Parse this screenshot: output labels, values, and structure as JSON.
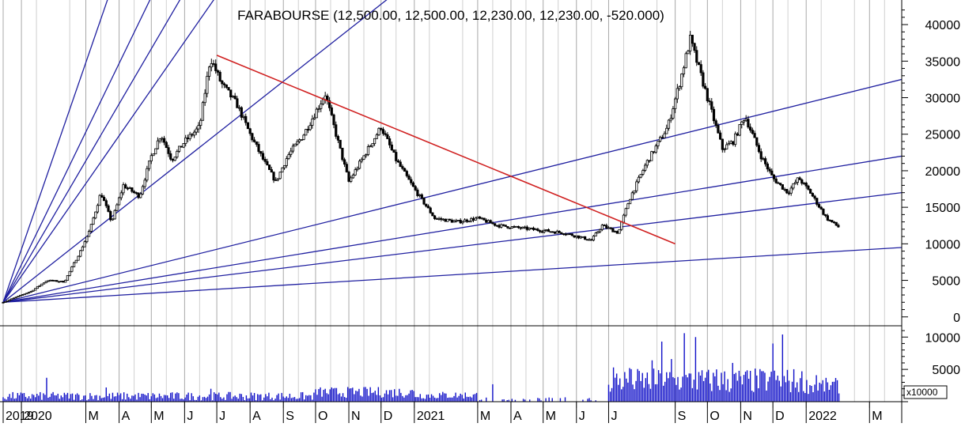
{
  "chart_data": {
    "type": "candlestick",
    "title": "FARABOURSE (12,500.00, 12,500.00, 12,230.00, 12,230.00, -520.000)",
    "price_axis": {
      "ylim": [
        -1000,
        42500
      ],
      "ticks": [
        0,
        5000,
        10000,
        15000,
        20000,
        25000,
        30000,
        35000,
        40000
      ]
    },
    "volume_axis": {
      "ylim": [
        0,
        11500
      ],
      "ticks": [
        5000,
        10000
      ],
      "unit_label": "x10000"
    },
    "x_labels": [
      {
        "label": "2019",
        "date": "2019-12-15"
      },
      {
        "label": "2020",
        "date": "2020-01-01"
      },
      {
        "label": "M",
        "date": "2020-03-01"
      },
      {
        "label": "A",
        "date": "2020-04-01"
      },
      {
        "label": "M",
        "date": "2020-05-01"
      },
      {
        "label": "J",
        "date": "2020-06-01"
      },
      {
        "label": "J",
        "date": "2020-07-01"
      },
      {
        "label": "A",
        "date": "2020-08-01"
      },
      {
        "label": "S",
        "date": "2020-09-01"
      },
      {
        "label": "O",
        "date": "2020-10-01"
      },
      {
        "label": "N",
        "date": "2020-11-01"
      },
      {
        "label": "D",
        "date": "2020-12-01"
      },
      {
        "label": "2021",
        "date": "2021-01-01"
      },
      {
        "label": "M",
        "date": "2021-03-01"
      },
      {
        "label": "A",
        "date": "2021-04-01"
      },
      {
        "label": "M",
        "date": "2021-05-01"
      },
      {
        "label": "J",
        "date": "2021-06-01"
      },
      {
        "label": "J",
        "date": "2021-07-01"
      },
      {
        "label": "S",
        "date": "2021-09-01"
      },
      {
        "label": "O",
        "date": "2021-10-01"
      },
      {
        "label": "N",
        "date": "2021-11-01"
      },
      {
        "label": "D",
        "date": "2021-12-01"
      },
      {
        "label": "2022",
        "date": "2022-01-01"
      },
      {
        "label": "M",
        "date": "2022-03-01"
      }
    ],
    "price_path": [
      [
        "2019-12-15",
        2000
      ],
      [
        "2020-01-10",
        3500
      ],
      [
        "2020-01-25",
        5000
      ],
      [
        "2020-02-10",
        4800
      ],
      [
        "2020-02-25",
        9000
      ],
      [
        "2020-03-05",
        12000
      ],
      [
        "2020-03-15",
        17000
      ],
      [
        "2020-03-25",
        13000
      ],
      [
        "2020-04-05",
        18000
      ],
      [
        "2020-04-20",
        16500
      ],
      [
        "2020-05-01",
        22000
      ],
      [
        "2020-05-10",
        25000
      ],
      [
        "2020-05-20",
        21500
      ],
      [
        "2020-06-01",
        24000
      ],
      [
        "2020-06-15",
        26000
      ],
      [
        "2020-06-25",
        35500
      ],
      [
        "2020-07-05",
        32000
      ],
      [
        "2020-07-20",
        29000
      ],
      [
        "2020-08-01",
        25000
      ],
      [
        "2020-08-15",
        21000
      ],
      [
        "2020-08-25",
        18500
      ],
      [
        "2020-09-05",
        22000
      ],
      [
        "2020-09-20",
        25000
      ],
      [
        "2020-10-01",
        28000
      ],
      [
        "2020-10-10",
        30500
      ],
      [
        "2020-10-20",
        25000
      ],
      [
        "2020-11-01",
        18500
      ],
      [
        "2020-11-15",
        22000
      ],
      [
        "2020-12-01",
        26000
      ],
      [
        "2020-12-15",
        21500
      ],
      [
        "2021-01-01",
        17500
      ],
      [
        "2021-01-20",
        13500
      ],
      [
        "2021-02-10",
        13000
      ],
      [
        "2021-03-01",
        13500
      ],
      [
        "2021-03-20",
        12500
      ],
      [
        "2021-04-20",
        12000
      ],
      [
        "2021-05-20",
        11500
      ],
      [
        "2021-06-15",
        10500
      ],
      [
        "2021-06-25",
        12500
      ],
      [
        "2021-07-10",
        11500
      ],
      [
        "2021-07-20",
        16000
      ],
      [
        "2021-08-05",
        21000
      ],
      [
        "2021-08-25",
        26000
      ],
      [
        "2021-09-05",
        32000
      ],
      [
        "2021-09-15",
        38000
      ],
      [
        "2021-09-25",
        33000
      ],
      [
        "2021-10-05",
        28000
      ],
      [
        "2021-10-15",
        23000
      ],
      [
        "2021-10-25",
        24000
      ],
      [
        "2021-11-05",
        27500
      ],
      [
        "2021-11-20",
        22000
      ],
      [
        "2021-12-01",
        19000
      ],
      [
        "2021-12-15",
        17000
      ],
      [
        "2021-12-25",
        19000
      ],
      [
        "2022-01-05",
        17000
      ],
      [
        "2022-01-20",
        13500
      ],
      [
        "2022-02-01",
        12230
      ]
    ],
    "fan_lines": {
      "origin": [
        "2019-12-15",
        2000
      ],
      "color": "#1f1fa0",
      "rays": [
        [
          "2020-04-01",
          48000
        ],
        [
          "2020-05-15",
          48000
        ],
        [
          "2020-06-15",
          48000
        ],
        [
          "2020-07-20",
          48000
        ],
        [
          "2021-01-15",
          48000
        ],
        [
          "2022-03-31",
          32500
        ],
        [
          "2022-03-31",
          22000
        ],
        [
          "2022-03-31",
          17000
        ],
        [
          "2022-03-31",
          9500
        ]
      ]
    },
    "trend_line": {
      "color": "#d02020",
      "from": [
        "2020-07-01",
        35800
      ],
      "to": [
        "2021-09-01",
        10000
      ]
    },
    "volume": {
      "color": "#1010c8"
    }
  }
}
